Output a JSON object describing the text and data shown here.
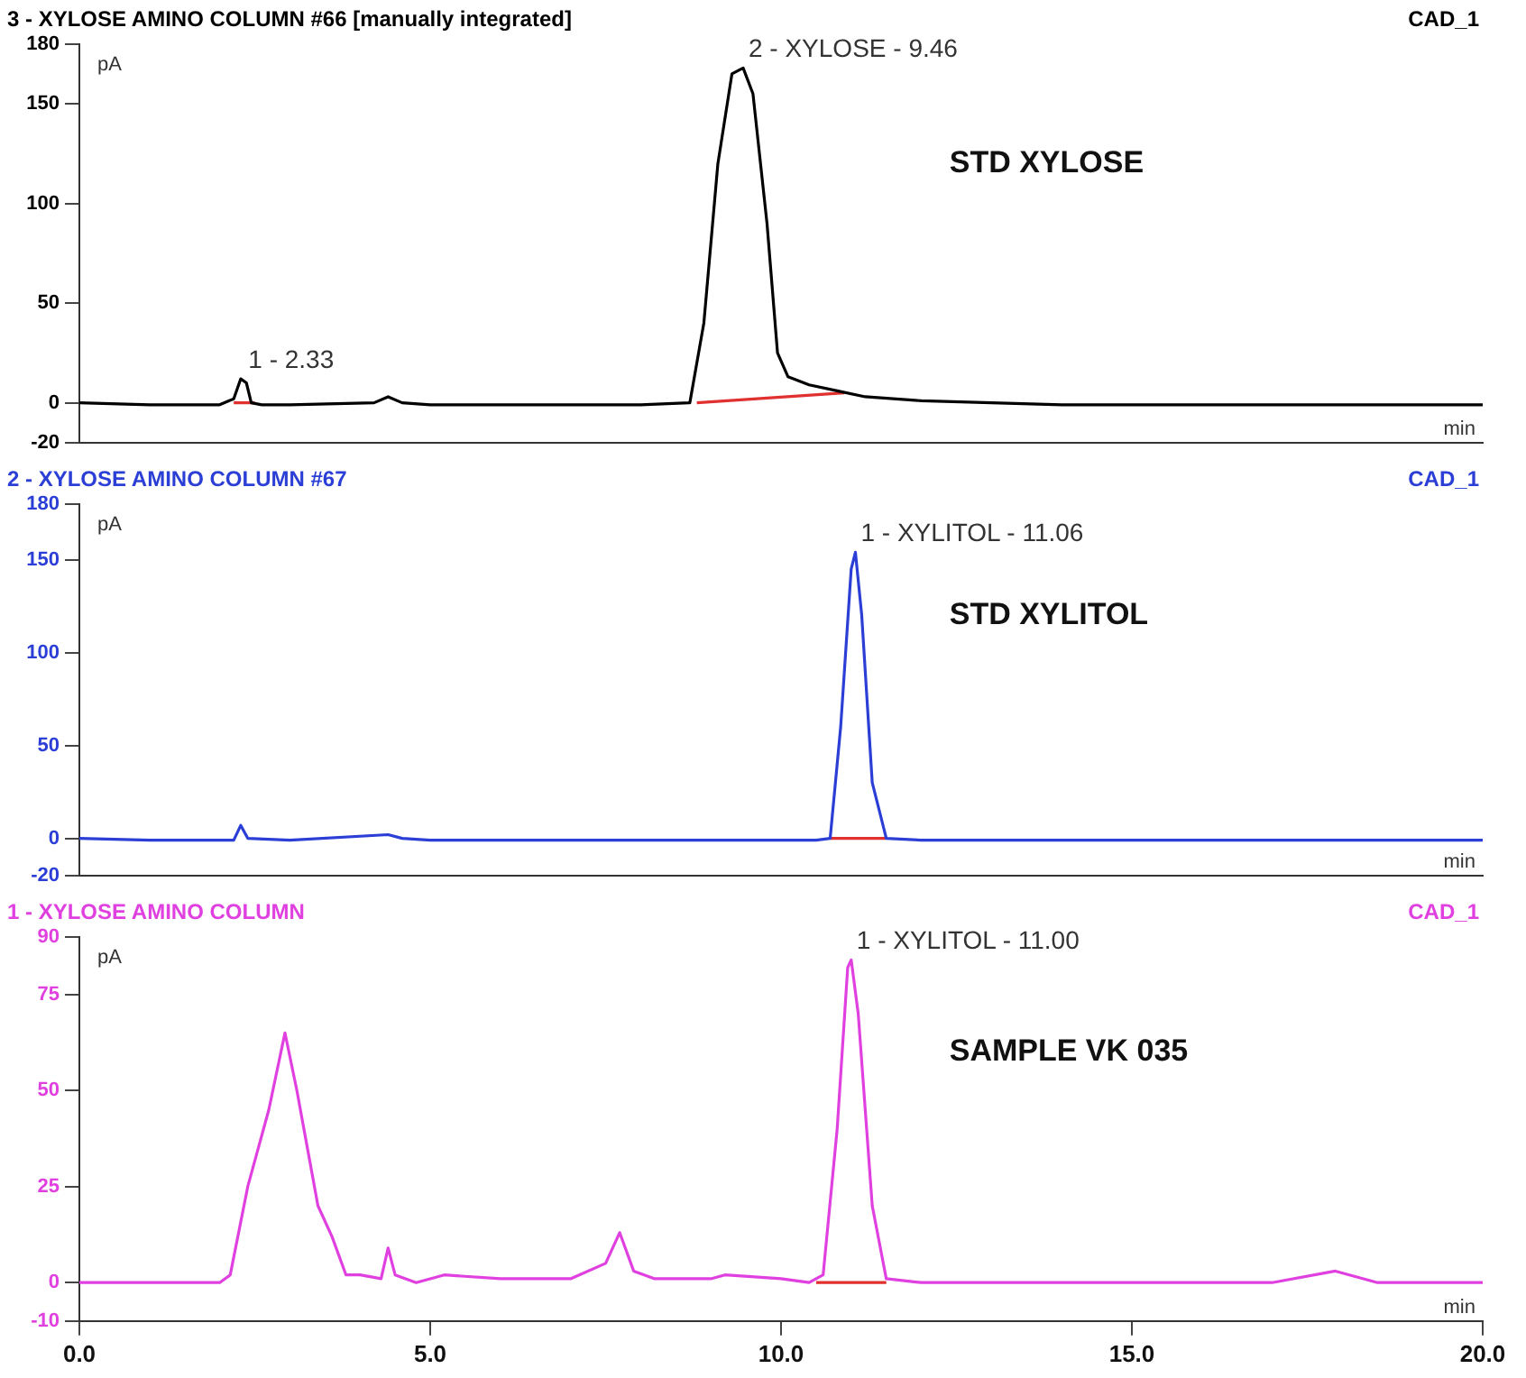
{
  "chart_data": [
    {
      "type": "line",
      "title": "3 - XYLOSE AMINO COLUMN #66 [manually integrated]",
      "subtitle": "CAD_1",
      "xlabel": "min",
      "ylabel": "pA",
      "xlim": [
        0,
        20
      ],
      "ylim": [
        -20,
        180
      ],
      "yticks": [
        -20,
        0,
        50,
        100,
        150,
        180
      ],
      "tick_labels": "y",
      "grid": false,
      "legend": false,
      "marker": "none",
      "line_style": "solid",
      "annotations": [
        {
          "text": "2 - XYLOSE - 9.46",
          "x": 9.46,
          "y": 168
        },
        {
          "text": "1 - 2.33",
          "x": 2.33,
          "y": 12
        },
        "STD XYLOSE"
      ],
      "series": [
        {
          "color": "#000000",
          "x": [
            0,
            1,
            2.0,
            2.2,
            2.3,
            2.38,
            2.45,
            2.6,
            3,
            4.2,
            4.4,
            4.6,
            5,
            6,
            7,
            8,
            8.7,
            8.9,
            9.1,
            9.3,
            9.46,
            9.6,
            9.8,
            9.95,
            10.1,
            10.4,
            10.8,
            11.2,
            12,
            13,
            14,
            16,
            18,
            20
          ],
          "values": [
            0,
            -1,
            -1,
            2,
            12,
            10,
            0,
            -1,
            -1,
            0,
            3,
            0,
            -1,
            -1,
            -1,
            -1,
            0,
            40,
            120,
            165,
            168,
            155,
            90,
            25,
            13,
            9,
            6,
            3,
            1,
            0,
            -1,
            -1,
            -1,
            -1
          ]
        },
        {
          "color": "#e03030",
          "x": [
            8.8,
            10.9
          ],
          "values": [
            0,
            5
          ]
        },
        {
          "color": "#e03030",
          "x": [
            2.2,
            2.5
          ],
          "values": [
            0,
            0
          ]
        }
      ]
    },
    {
      "type": "line",
      "title": "2 - XYLOSE AMINO COLUMN #67",
      "subtitle": "CAD_1",
      "xlabel": "min",
      "ylabel": "pA",
      "xlim": [
        0,
        20
      ],
      "ylim": [
        -20,
        180
      ],
      "yticks": [
        -20,
        0,
        50,
        100,
        150,
        180
      ],
      "tick_labels": "y",
      "grid": false,
      "legend": false,
      "marker": "none",
      "line_style": "solid",
      "annotations": [
        {
          "text": "1 - XYLITOL - 11.06",
          "x": 11.06,
          "y": 154
        },
        "STD XYLITOL"
      ],
      "series": [
        {
          "color": "#2b3fd6",
          "x": [
            0,
            1,
            2.2,
            2.3,
            2.4,
            3,
            4.4,
            4.6,
            5,
            8,
            10.5,
            10.7,
            10.85,
            11.0,
            11.06,
            11.15,
            11.3,
            11.5,
            12,
            15,
            20
          ],
          "values": [
            0,
            -1,
            -1,
            7,
            0,
            -1,
            2,
            0,
            -1,
            -1,
            -1,
            0,
            60,
            145,
            154,
            120,
            30,
            0,
            -1,
            -1,
            -1
          ]
        },
        {
          "color": "#e03030",
          "x": [
            10.7,
            11.5
          ],
          "values": [
            0,
            0
          ]
        }
      ]
    },
    {
      "type": "line",
      "title": "1 - XYLOSE AMINO COLUMN",
      "subtitle": "CAD_1",
      "xlabel": "min",
      "ylabel": "pA",
      "xlim": [
        0,
        20
      ],
      "ylim": [
        -10,
        90
      ],
      "xticks": [
        {
          "value": 0,
          "label": "0.0"
        },
        {
          "value": 5,
          "label": "5.0"
        },
        {
          "value": 10,
          "label": "10.0"
        },
        {
          "value": 15,
          "label": "15.0"
        },
        {
          "value": 20,
          "label": "20.0"
        }
      ],
      "yticks": [
        -10,
        0,
        25,
        50,
        75,
        90
      ],
      "grid": false,
      "legend": false,
      "marker": "none",
      "line_style": "solid",
      "annotations": [
        {
          "text": "1 - XYLITOL - 11.00",
          "x": 11.0,
          "y": 84
        },
        "SAMPLE VK 035"
      ],
      "series": [
        {
          "color": "#e040e0",
          "x": [
            0,
            1,
            2.0,
            2.15,
            2.4,
            2.7,
            2.93,
            3.1,
            3.4,
            3.6,
            3.8,
            4.0,
            4.3,
            4.4,
            4.5,
            4.8,
            5.2,
            6,
            7,
            7.5,
            7.7,
            7.9,
            8.2,
            9,
            9.2,
            10,
            10.4,
            10.6,
            10.8,
            10.95,
            11.0,
            11.1,
            11.3,
            11.5,
            12,
            15,
            17,
            17.9,
            18.5,
            20
          ],
          "values": [
            0,
            0,
            0,
            2,
            25,
            45,
            65,
            50,
            20,
            12,
            2,
            2,
            1,
            9,
            2,
            0,
            2,
            1,
            1,
            5,
            13,
            3,
            1,
            1,
            2,
            1,
            0,
            2,
            40,
            82,
            84,
            70,
            20,
            1,
            0,
            0,
            0,
            3,
            0,
            0
          ]
        },
        {
          "color": "#e03030",
          "x": [
            10.5,
            11.5
          ],
          "values": [
            0,
            0
          ]
        }
      ]
    }
  ]
}
